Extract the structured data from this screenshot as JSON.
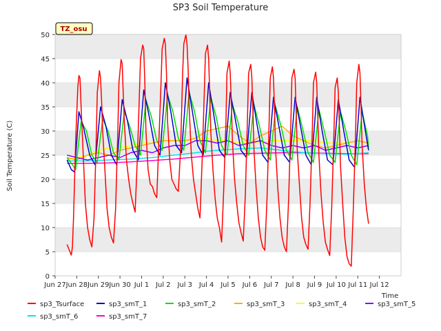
{
  "chart_data": {
    "type": "line",
    "title": "SP3 Soil Temperature",
    "xlabel": "Time",
    "ylabel": "Soil Temperature (C)",
    "ylim": [
      0,
      50
    ],
    "yticks": [
      0,
      5,
      10,
      15,
      20,
      25,
      30,
      35,
      40,
      45,
      50
    ],
    "xlim": [
      0,
      16
    ],
    "xtick_labels": [
      "Jun 27",
      "Jun 28",
      "Jun 29",
      "Jun 30",
      "Jul 1",
      "Jul 2",
      "Jul 3",
      "Jul 4",
      "Jul 5",
      "Jul 6",
      "Jul 7",
      "Jul 8",
      "Jul 9",
      "Jul 10",
      "Jul 11",
      "Jul 12"
    ],
    "x_unit": "days since Jun 27",
    "annotation": "TZ_osu",
    "legend_position": "bottom",
    "daily_peaks": {
      "sp3_Tsurface": [
        41.5,
        42.5,
        44.8,
        47.8,
        49.2,
        50.0,
        47.8,
        44.5,
        43.8,
        43.3,
        42.8,
        42.2,
        41.0,
        43.8
      ],
      "sp3_Tsurface_min": [
        4.3,
        6.0,
        6.8,
        13.2,
        16.2,
        17.5,
        12.0,
        7.0,
        7.2,
        5.3,
        5.0,
        5.5,
        4.2,
        2.0,
        10.8
      ]
    },
    "series": [
      {
        "name": "sp3_Tsurface",
        "color": "#ff0000",
        "x": [
          0.55,
          0.7,
          0.75,
          0.8,
          0.85,
          0.95,
          1.05,
          1.1,
          1.15,
          1.2,
          1.3,
          1.4,
          1.5,
          1.6,
          1.7,
          1.8,
          1.9,
          1.95,
          2.05,
          2.1,
          2.15,
          2.2,
          2.3,
          2.4,
          2.5,
          2.6,
          2.7,
          2.8,
          2.9,
          2.95,
          3.05,
          3.1,
          3.15,
          3.2,
          3.3,
          3.4,
          3.5,
          3.6,
          3.7,
          3.8,
          3.9,
          3.95,
          4.05,
          4.1,
          4.15,
          4.2,
          4.3,
          4.4,
          4.5,
          4.6,
          4.7,
          4.8,
          4.9,
          4.95,
          5.05,
          5.1,
          5.15,
          5.2,
          5.3,
          5.4,
          5.5,
          5.6,
          5.7,
          5.8,
          5.9,
          5.95,
          6.05,
          6.1,
          6.15,
          6.2,
          6.3,
          6.4,
          6.5,
          6.6,
          6.7,
          6.8,
          6.9,
          6.95,
          7.05,
          7.1,
          7.15,
          7.2,
          7.3,
          7.4,
          7.5,
          7.6,
          7.7,
          7.8,
          7.9,
          7.95,
          8.05,
          8.1,
          8.15,
          8.2,
          8.3,
          8.4,
          8.5,
          8.6,
          8.7,
          8.8,
          8.9,
          8.95,
          9.05,
          9.1,
          9.15,
          9.2,
          9.3,
          9.4,
          9.5,
          9.6,
          9.7,
          9.8,
          9.9,
          9.95,
          10.05,
          10.1,
          10.15,
          10.2,
          10.3,
          10.4,
          10.5,
          10.6,
          10.7,
          10.8,
          10.9,
          10.95,
          11.05,
          11.1,
          11.15,
          11.2,
          11.3,
          11.4,
          11.5,
          11.6,
          11.7,
          11.8,
          11.9,
          11.95,
          12.05,
          12.1,
          12.15,
          12.2,
          12.3,
          12.4,
          12.5,
          12.6,
          12.7,
          12.8,
          12.9,
          12.95,
          13.05,
          13.1,
          13.15,
          13.2,
          13.3,
          13.4,
          13.5,
          13.6,
          13.7,
          13.8,
          13.9,
          13.95,
          14.05,
          14.1,
          14.15,
          14.2,
          14.3,
          14.4,
          14.5
        ],
        "y": [
          6.5,
          4.8,
          4.3,
          6.0,
          12.0,
          28.0,
          39.0,
          41.5,
          41.0,
          35.0,
          25.0,
          15.0,
          10.0,
          7.5,
          6.0,
          12.0,
          28.0,
          38.0,
          42.5,
          41.0,
          36.0,
          30.0,
          22.0,
          14.0,
          10.0,
          8.0,
          6.8,
          14.0,
          30.0,
          40.0,
          44.8,
          44.0,
          38.0,
          32.0,
          24.0,
          20.0,
          17.0,
          15.0,
          13.2,
          24.0,
          38.0,
          45.0,
          47.8,
          47.0,
          40.0,
          30.0,
          22.0,
          19.0,
          18.5,
          17.0,
          16.2,
          28.0,
          40.0,
          47.0,
          49.2,
          48.0,
          42.0,
          32.0,
          24.0,
          20.0,
          19.0,
          18.0,
          17.5,
          26.0,
          42.0,
          48.0,
          50.0,
          48.0,
          43.0,
          35.0,
          25.0,
          20.0,
          17.0,
          14.0,
          12.0,
          24.0,
          38.0,
          46.0,
          47.8,
          45.0,
          38.0,
          30.0,
          22.0,
          16.0,
          12.0,
          10.0,
          7.0,
          18.0,
          32.0,
          42.0,
          44.5,
          42.0,
          36.0,
          28.0,
          20.0,
          15.0,
          11.0,
          9.0,
          7.2,
          17.0,
          33.0,
          42.0,
          43.8,
          41.0,
          34.0,
          26.0,
          18.0,
          12.0,
          8.0,
          6.0,
          5.3,
          16.0,
          32.0,
          41.0,
          43.3,
          41.0,
          34.0,
          26.0,
          18.0,
          12.0,
          8.0,
          6.0,
          5.0,
          16.0,
          31.0,
          41.0,
          42.8,
          41.0,
          34.0,
          26.0,
          19.0,
          12.0,
          8.0,
          6.5,
          5.5,
          16.0,
          31.0,
          40.0,
          42.2,
          40.0,
          33.0,
          25.0,
          17.0,
          11.0,
          7.0,
          5.5,
          4.2,
          15.0,
          30.0,
          39.0,
          41.0,
          38.0,
          31.0,
          23.0,
          15.0,
          8.0,
          4.0,
          2.5,
          2.0,
          15.0,
          30.0,
          40.0,
          43.8,
          42.0,
          35.0,
          27.0,
          19.0,
          14.0,
          10.8
        ]
      },
      {
        "name": "sp3_smT_1",
        "color": "#0000cc",
        "x": [
          0.55,
          0.75,
          0.9,
          1.1,
          1.3,
          1.6,
          1.85,
          2.1,
          2.35,
          2.6,
          2.85,
          3.1,
          3.35,
          3.6,
          3.85,
          4.1,
          4.35,
          4.6,
          4.85,
          5.1,
          5.35,
          5.6,
          5.85,
          6.1,
          6.35,
          6.6,
          6.85,
          7.1,
          7.35,
          7.6,
          7.85,
          8.1,
          8.35,
          8.6,
          8.85,
          9.1,
          9.35,
          9.6,
          9.85,
          10.1,
          10.35,
          10.6,
          10.85,
          11.1,
          11.35,
          11.6,
          11.85,
          12.1,
          12.35,
          12.6,
          12.85,
          13.1,
          13.35,
          13.6,
          13.85,
          14.1,
          14.35,
          14.5
        ],
        "y": [
          24.0,
          22.0,
          21.5,
          34.0,
          31.0,
          25.0,
          23.0,
          35.0,
          31.0,
          25.0,
          23.0,
          36.5,
          32.0,
          26.0,
          24.0,
          38.5,
          33.0,
          27.0,
          25.0,
          40.0,
          34.0,
          27.0,
          25.5,
          41.0,
          34.0,
          27.0,
          25.0,
          40.0,
          33.0,
          26.0,
          24.5,
          38.0,
          32.0,
          26.0,
          24.5,
          38.0,
          31.0,
          25.0,
          23.5,
          37.0,
          31.0,
          25.0,
          23.5,
          37.0,
          31.0,
          25.0,
          23.0,
          37.0,
          30.0,
          24.0,
          23.0,
          36.5,
          30.0,
          24.0,
          22.5,
          37.0,
          30.0,
          26.0
        ]
      },
      {
        "name": "sp3_smT_2",
        "color": "#00dd00",
        "x": [
          0.55,
          0.8,
          0.95,
          1.2,
          1.45,
          1.7,
          1.95,
          2.2,
          2.45,
          2.7,
          2.95,
          3.2,
          3.45,
          3.7,
          3.95,
          4.2,
          4.45,
          4.7,
          4.95,
          5.2,
          5.45,
          5.7,
          5.95,
          6.2,
          6.45,
          6.7,
          6.95,
          7.2,
          7.45,
          7.7,
          7.95,
          8.2,
          8.45,
          8.7,
          8.95,
          9.2,
          9.45,
          9.7,
          9.95,
          10.2,
          10.45,
          10.7,
          10.95,
          11.2,
          11.45,
          11.7,
          11.95,
          12.2,
          12.45,
          12.7,
          12.95,
          13.2,
          13.45,
          13.7,
          13.95,
          14.2,
          14.45,
          14.5
        ],
        "y": [
          24.5,
          23.0,
          22.0,
          32.0,
          30.0,
          25.0,
          23.5,
          32.5,
          30.0,
          25.5,
          24.0,
          34.0,
          31.0,
          27.0,
          25.0,
          36.5,
          33.0,
          28.0,
          26.0,
          37.5,
          34.0,
          28.5,
          26.0,
          38.0,
          34.0,
          28.0,
          25.5,
          37.0,
          33.0,
          27.0,
          25.0,
          35.5,
          32.0,
          27.0,
          25.0,
          35.5,
          31.0,
          26.0,
          24.0,
          35.0,
          31.0,
          26.0,
          24.0,
          35.0,
          30.5,
          25.5,
          23.5,
          34.5,
          30.0,
          25.0,
          23.5,
          34.0,
          30.0,
          25.0,
          23.0,
          34.0,
          29.0,
          26.5
        ]
      },
      {
        "name": "sp3_smT_3",
        "color": "#ffaa00",
        "x": [
          0.55,
          1.0,
          1.5,
          2.0,
          2.5,
          3.0,
          3.5,
          4.0,
          4.5,
          5.0,
          5.5,
          6.0,
          6.5,
          7.0,
          7.5,
          8.0,
          8.5,
          9.0,
          9.5,
          10.0,
          10.5,
          11.0,
          11.5,
          12.0,
          12.5,
          13.0,
          13.5,
          14.0,
          14.5
        ],
        "y": [
          24.5,
          24.0,
          25.0,
          25.5,
          25.0,
          26.0,
          26.5,
          27.0,
          27.5,
          28.0,
          28.0,
          28.0,
          28.5,
          30.0,
          30.5,
          31.0,
          29.0,
          27.5,
          29.0,
          30.0,
          31.0,
          29.0,
          28.0,
          27.0,
          26.5,
          27.0,
          27.5,
          28.0,
          27.5
        ]
      },
      {
        "name": "sp3_smT_4",
        "color": "#ffff00",
        "x": [
          0.55,
          1.0,
          1.5,
          2.0,
          2.5,
          3.0,
          3.5,
          4.0,
          4.5,
          5.0,
          5.5,
          6.0,
          6.5,
          7.0,
          7.5,
          8.0,
          8.5,
          9.0,
          9.5,
          10.0,
          10.5,
          11.0,
          11.5,
          12.0,
          12.5,
          13.0,
          13.5,
          14.0,
          14.5
        ],
        "y": [
          24.0,
          24.5,
          25.0,
          26.0,
          26.5,
          26.5,
          27.0,
          27.5,
          27.5,
          28.0,
          28.0,
          28.0,
          28.5,
          28.5,
          28.0,
          28.0,
          27.5,
          27.5,
          27.5,
          28.0,
          28.0,
          28.0,
          28.0,
          28.0,
          27.5,
          27.5,
          27.5,
          28.0,
          27.5
        ]
      },
      {
        "name": "sp3_smT_5",
        "color": "#8800ff",
        "x": [
          0.55,
          1.0,
          1.5,
          2.0,
          2.5,
          3.0,
          3.5,
          4.0,
          4.5,
          5.0,
          5.5,
          6.0,
          6.5,
          7.0,
          7.5,
          8.0,
          8.5,
          9.0,
          9.5,
          10.0,
          10.5,
          11.0,
          11.5,
          12.0,
          12.5,
          13.0,
          13.5,
          14.0,
          14.5
        ],
        "y": [
          25.0,
          24.5,
          24.0,
          24.5,
          25.0,
          24.5,
          25.5,
          26.0,
          25.5,
          26.5,
          27.0,
          27.0,
          28.0,
          28.0,
          27.5,
          28.0,
          27.0,
          27.5,
          28.0,
          27.0,
          26.5,
          27.0,
          26.5,
          27.0,
          26.0,
          26.5,
          27.0,
          26.5,
          27.0
        ]
      },
      {
        "name": "sp3_smT_6",
        "color": "#00e5ee",
        "x": [
          0.55,
          1.5,
          2.5,
          3.5,
          4.5,
          5.5,
          6.5,
          7.0,
          7.5,
          8.5,
          9.5,
          10.5,
          11.5,
          12.5,
          13.5,
          14.5
        ],
        "y": [
          23.8,
          23.8,
          24.0,
          24.2,
          24.5,
          25.0,
          25.5,
          25.8,
          26.0,
          26.3,
          26.5,
          26.0,
          25.5,
          25.3,
          25.2,
          25.5
        ]
      },
      {
        "name": "sp3_smT_7",
        "color": "#ff00cc",
        "x": [
          0.55,
          1.5,
          2.5,
          3.5,
          4.5,
          5.5,
          6.5,
          7.5,
          8.5,
          9.5,
          10.5,
          11.5,
          12.5,
          13.5,
          14.5
        ],
        "y": [
          23.3,
          23.3,
          23.4,
          23.6,
          23.9,
          24.2,
          24.6,
          25.0,
          25.3,
          25.4,
          25.5,
          25.5,
          25.4,
          25.3,
          25.3
        ]
      }
    ]
  }
}
